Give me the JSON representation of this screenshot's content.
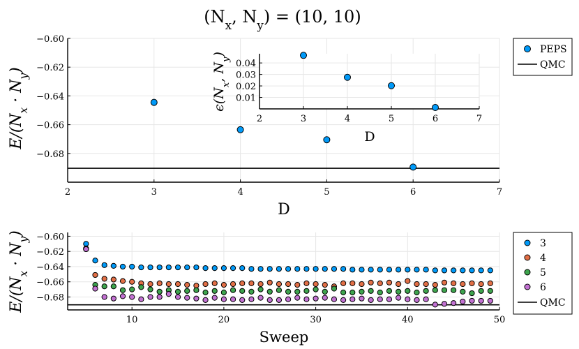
{
  "chart_data": [
    {
      "type": "scatter",
      "id": "main",
      "title": "(N_x, N_y) = (10, 10)",
      "xlabel": "D",
      "ylabel": "E/(N_x · N_y)",
      "xlim": [
        2,
        7
      ],
      "ylim": [
        -0.7,
        -0.6
      ],
      "xticks": [
        2,
        3,
        4,
        5,
        6,
        7
      ],
      "yticks": [
        -0.6,
        -0.62,
        -0.64,
        -0.66,
        -0.68
      ],
      "ytick_labels": [
        "−0.60",
        "−0.62",
        "−0.64",
        "−0.66",
        "−0.68"
      ],
      "xtick_labels": [
        "2",
        "3",
        "4",
        "5",
        "6",
        "7"
      ],
      "series": [
        {
          "name": "PEPS",
          "x": [
            3,
            4,
            5,
            6
          ],
          "y": [
            -0.6445,
            -0.6635,
            -0.6705,
            -0.6895
          ],
          "color": "#009af9"
        }
      ],
      "hline": {
        "name": "QMC",
        "y": -0.6903
      },
      "grid": true,
      "legend": "outside-right"
    },
    {
      "type": "scatter",
      "id": "inset",
      "xlabel": "D",
      "ylabel": "ϵ(N_x, N_y)",
      "xlim": [
        2,
        7
      ],
      "ylim": [
        0,
        0.048
      ],
      "xticks": [
        2,
        3,
        4,
        5,
        6,
        7
      ],
      "xtick_labels": [
        "2",
        "3",
        "4",
        "5",
        "6",
        "7"
      ],
      "yticks": [
        0.01,
        0.02,
        0.03,
        0.04
      ],
      "ytick_labels": [
        "0.01",
        "0.02",
        "0.03",
        "0.04"
      ],
      "series": [
        {
          "name": "PEPS",
          "x": [
            3,
            4,
            5,
            6
          ],
          "y": [
            0.0466,
            0.0275,
            0.0202,
            0.0012
          ],
          "color": "#009af9"
        }
      ],
      "grid": true
    },
    {
      "type": "scatter",
      "id": "sweep",
      "xlabel": "Sweep",
      "ylabel": "E/(N_x · N_y)",
      "xlim": [
        3,
        50
      ],
      "ylim": [
        -0.697,
        -0.595
      ],
      "xticks": [
        10,
        20,
        30,
        40,
        50
      ],
      "xtick_labels": [
        "10",
        "20",
        "30",
        "40",
        "50"
      ],
      "yticks": [
        -0.6,
        -0.62,
        -0.64,
        -0.66,
        -0.68
      ],
      "ytick_labels": [
        "−0.60",
        "−0.62",
        "−0.64",
        "−0.66",
        "−0.68"
      ],
      "x": [
        5,
        6,
        7,
        8,
        9,
        10,
        11,
        12,
        13,
        14,
        15,
        16,
        17,
        18,
        19,
        20,
        21,
        22,
        23,
        24,
        25,
        26,
        27,
        28,
        29,
        30,
        31,
        32,
        33,
        34,
        35,
        36,
        37,
        38,
        39,
        40,
        41,
        42,
        43,
        44,
        45,
        46,
        47,
        48,
        49
      ],
      "series": [
        {
          "name": "3",
          "color": "#009af9",
          "values": [
            -0.61,
            -0.632,
            -0.638,
            -0.639,
            -0.64,
            -0.64,
            -0.641,
            -0.641,
            -0.641,
            -0.641,
            -0.641,
            -0.641,
            -0.641,
            -0.642,
            -0.642,
            -0.642,
            -0.642,
            -0.642,
            -0.643,
            -0.643,
            -0.643,
            -0.643,
            -0.643,
            -0.643,
            -0.643,
            -0.643,
            -0.643,
            -0.643,
            -0.643,
            -0.644,
            -0.644,
            -0.644,
            -0.644,
            -0.644,
            -0.644,
            -0.644,
            -0.644,
            -0.644,
            -0.645,
            -0.645,
            -0.645,
            -0.645,
            -0.645,
            -0.645,
            -0.645
          ]
        },
        {
          "name": "4",
          "color": "#e26f46",
          "values": [
            -0.616,
            -0.651,
            -0.656,
            -0.657,
            -0.659,
            -0.66,
            -0.662,
            -0.663,
            -0.662,
            -0.663,
            -0.663,
            -0.664,
            -0.665,
            -0.663,
            -0.662,
            -0.664,
            -0.663,
            -0.662,
            -0.662,
            -0.663,
            -0.661,
            -0.663,
            -0.663,
            -0.664,
            -0.662,
            -0.663,
            -0.664,
            -0.666,
            -0.662,
            -0.662,
            -0.663,
            -0.661,
            -0.662,
            -0.661,
            -0.663,
            -0.659,
            -0.663,
            -0.663,
            -0.664,
            -0.661,
            -0.662,
            -0.663,
            -0.662,
            -0.663,
            -0.662
          ]
        },
        {
          "name": "5",
          "color": "#3da44d",
          "values": [
            -0.617,
            -0.664,
            -0.666,
            -0.666,
            -0.671,
            -0.67,
            -0.667,
            -0.67,
            -0.673,
            -0.671,
            -0.673,
            -0.672,
            -0.671,
            -0.674,
            -0.672,
            -0.674,
            -0.671,
            -0.672,
            -0.673,
            -0.67,
            -0.673,
            -0.671,
            -0.673,
            -0.673,
            -0.672,
            -0.67,
            -0.673,
            -0.669,
            -0.674,
            -0.674,
            -0.673,
            -0.672,
            -0.674,
            -0.672,
            -0.673,
            -0.672,
            -0.674,
            -0.672,
            -0.671,
            -0.671,
            -0.671,
            -0.673,
            -0.675,
            -0.672,
            -0.672
          ]
        },
        {
          "name": "6",
          "color": "#c271d2",
          "values": [
            -0.617,
            -0.669,
            -0.68,
            -0.682,
            -0.679,
            -0.68,
            -0.683,
            -0.68,
            -0.68,
            -0.676,
            -0.68,
            -0.681,
            -0.682,
            -0.684,
            -0.681,
            -0.683,
            -0.683,
            -0.684,
            -0.683,
            -0.681,
            -0.684,
            -0.684,
            -0.683,
            -0.681,
            -0.683,
            -0.682,
            -0.681,
            -0.683,
            -0.684,
            -0.683,
            -0.682,
            -0.684,
            -0.683,
            -0.683,
            -0.681,
            -0.683,
            -0.684,
            -0.683,
            -0.69,
            -0.689,
            -0.688,
            -0.686,
            -0.685,
            -0.685,
            -0.685
          ]
        }
      ],
      "hline": {
        "name": "QMC",
        "y": -0.6903
      },
      "grid": true,
      "legend": "outside-right"
    }
  ]
}
